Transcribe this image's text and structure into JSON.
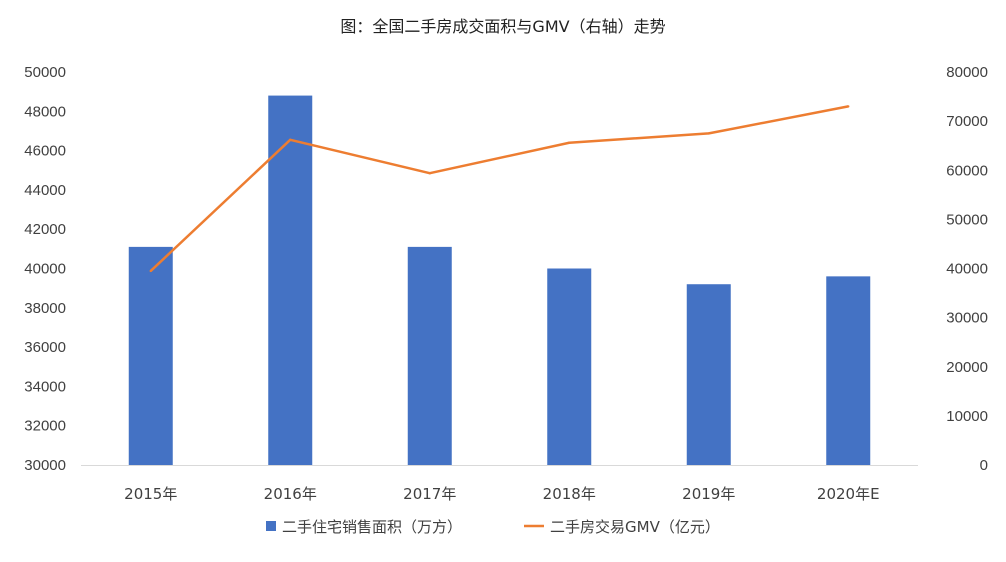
{
  "chart_data": {
    "type": "bar+line",
    "title": "图：全国二手房成交面积与GMV（右轴）走势",
    "categories": [
      "2015年",
      "2016年",
      "2017年",
      "2018年",
      "2019年",
      "2020年E"
    ],
    "y_left": {
      "min": 30000,
      "max": 50000,
      "step": 2000,
      "ticks": [
        "30000",
        "32000",
        "34000",
        "36000",
        "38000",
        "40000",
        "42000",
        "44000",
        "46000",
        "48000",
        "50000"
      ]
    },
    "y_right": {
      "min": 0,
      "max": 80000,
      "step": 10000,
      "ticks": [
        "0",
        "10000",
        "20000",
        "30000",
        "40000",
        "50000",
        "60000",
        "70000",
        "80000"
      ]
    },
    "series": [
      {
        "name": "二手住宅销售面积（万方）",
        "type": "bar",
        "axis": "left",
        "color": "#4472C4",
        "values": [
          41100,
          48800,
          41100,
          40000,
          39200,
          39600
        ]
      },
      {
        "name": "二手房交易GMV（亿元）",
        "type": "line",
        "axis": "right",
        "color": "#ED7D31",
        "values": [
          39500,
          66200,
          59400,
          65600,
          67500,
          73000
        ]
      }
    ],
    "legend_position": "bottom",
    "grid": false
  }
}
